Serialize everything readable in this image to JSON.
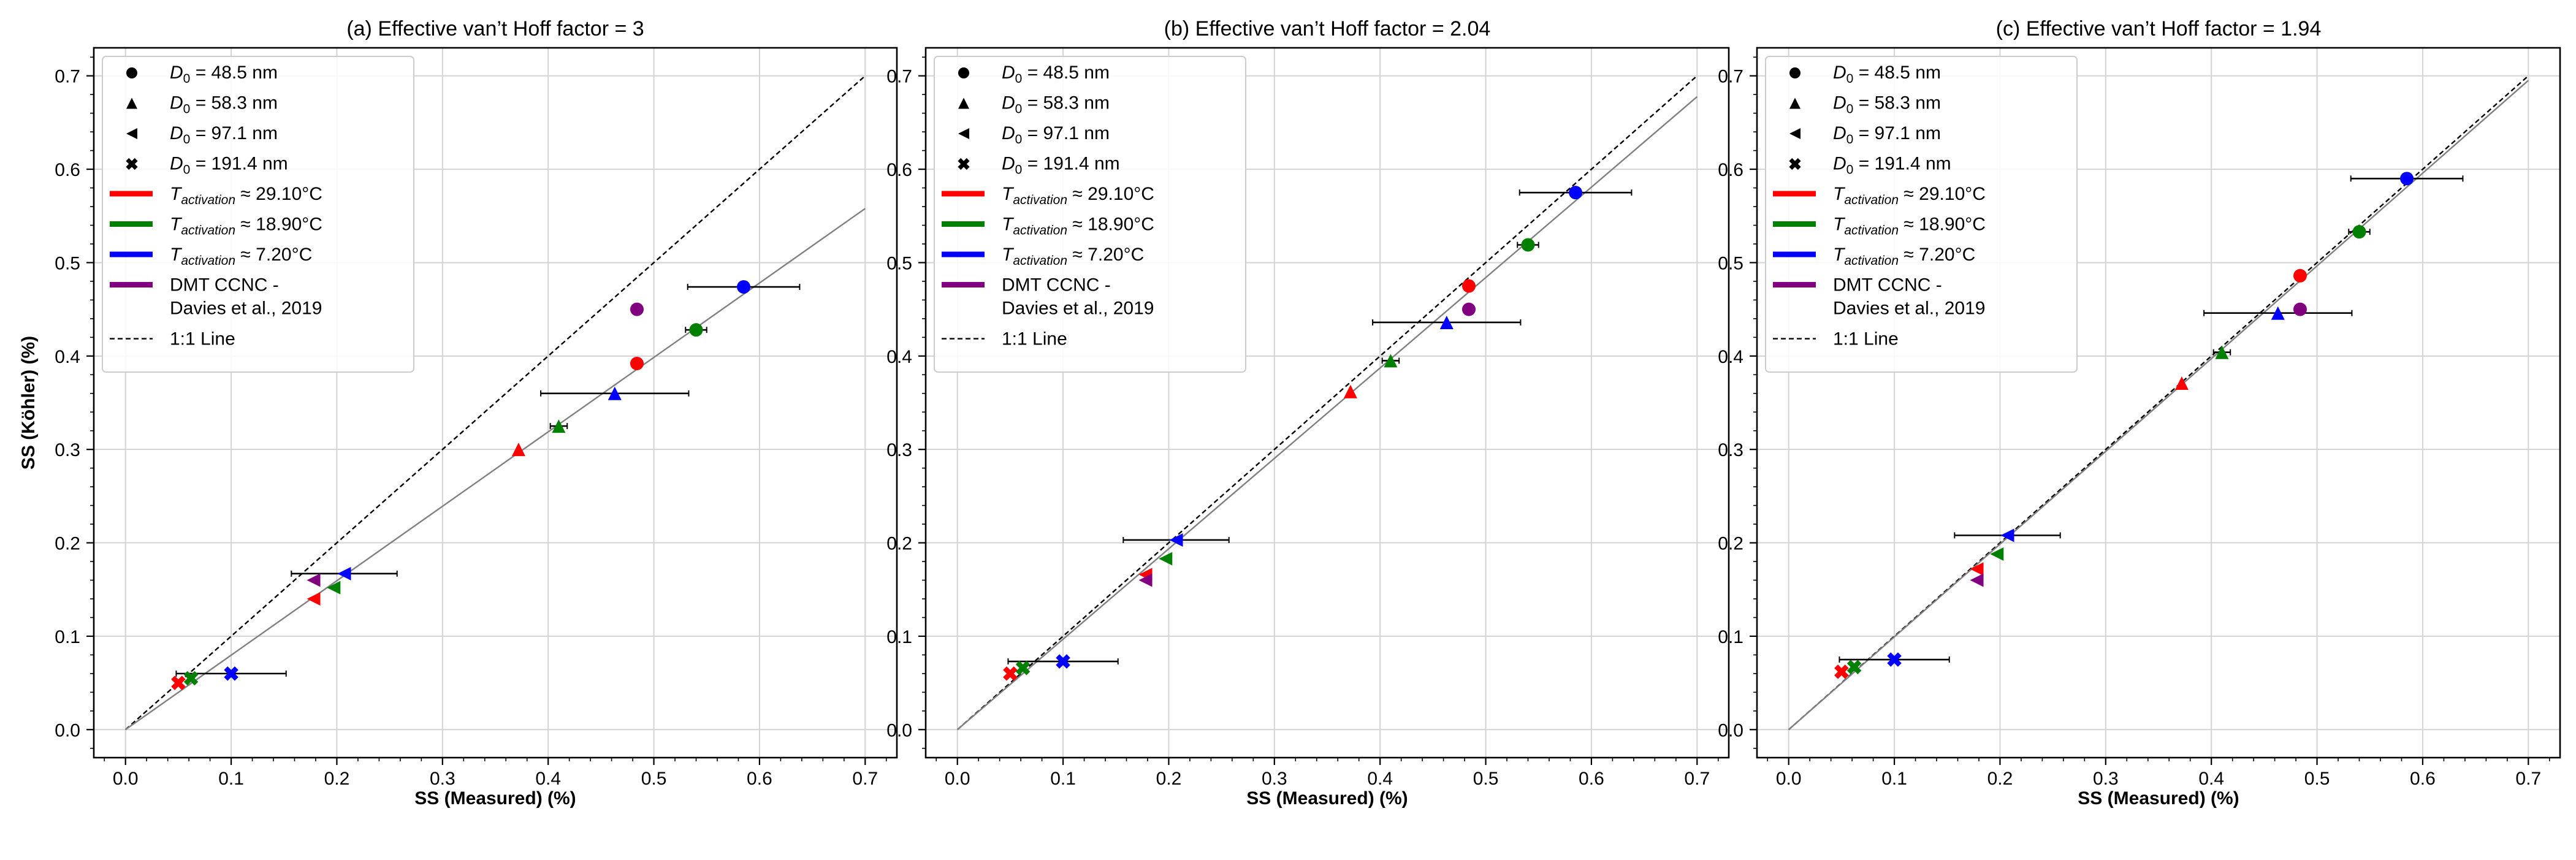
{
  "colors": {
    "red": "#ff0000",
    "green": "#008000",
    "blue": "#0000ff",
    "purple": "#800080",
    "fit_line": "#808080",
    "one_to_one": "#000000",
    "grid": "#d3d3d3",
    "error_bar": "#000000"
  },
  "legend": {
    "d0_prefix": "D",
    "d0_sub": "0",
    "d0_entries": [
      {
        "marker": "circle",
        "value": " = 48.5 nm"
      },
      {
        "marker": "triangle-up",
        "value": " = 58.3 nm"
      },
      {
        "marker": "triangle-left",
        "value": " = 97.1 nm"
      },
      {
        "marker": "x-thick",
        "value": " = 191.4 nm"
      }
    ],
    "t_prefix": "T",
    "t_sub": "activation",
    "t_entries": [
      {
        "color_key": "red",
        "value": " ≈ 29.10°C"
      },
      {
        "color_key": "green",
        "value": " ≈ 18.90°C"
      },
      {
        "color_key": "blue",
        "value": " ≈ 7.20°C"
      }
    ],
    "dmt_line1": "DMT CCNC -",
    "dmt_line2": "Davies et al., 2019",
    "one_to_one": "1:1 Line"
  },
  "chart_data": [
    {
      "type": "scatter",
      "title": "(a) Effective van’t Hoff factor = 3",
      "xlabel": "SS (Measured) (%)",
      "ylabel": "SS (Köhler) (%)",
      "xlim": [
        -0.03,
        0.73
      ],
      "ylim": [
        -0.03,
        0.73
      ],
      "x_ticks": [
        "0.0",
        "0.1",
        "0.2",
        "0.3",
        "0.4",
        "0.5",
        "0.6",
        "0.7"
      ],
      "y_ticks": [
        "0.0",
        "0.1",
        "0.2",
        "0.3",
        "0.4",
        "0.5",
        "0.6",
        "0.7"
      ],
      "grid": true,
      "legend_position": "upper-left",
      "fit_line": {
        "slope": 0.797,
        "intercept": 0.0
      },
      "points": [
        {
          "series": "29.10°C",
          "color_key": "red",
          "d0": "48.5 nm",
          "marker": "circle",
          "x": 0.484,
          "y": 0.392
        },
        {
          "series": "29.10°C",
          "color_key": "red",
          "d0": "58.3 nm",
          "marker": "triangle-up",
          "x": 0.372,
          "y": 0.3
        },
        {
          "series": "29.10°C",
          "color_key": "red",
          "d0": "97.1 nm",
          "marker": "triangle-left",
          "x": 0.178,
          "y": 0.14
        },
        {
          "series": "29.10°C",
          "color_key": "red",
          "d0": "191.4 nm",
          "marker": "x-thick",
          "x": 0.05,
          "y": 0.05
        },
        {
          "series": "18.90°C",
          "color_key": "green",
          "d0": "48.5 nm",
          "marker": "circle",
          "x": 0.54,
          "y": 0.428,
          "xerr": 0.01
        },
        {
          "series": "18.90°C",
          "color_key": "green",
          "d0": "58.3 nm",
          "marker": "triangle-up",
          "x": 0.41,
          "y": 0.325,
          "xerr": 0.008
        },
        {
          "series": "18.90°C",
          "color_key": "green",
          "d0": "97.1 nm",
          "marker": "triangle-left",
          "x": 0.197,
          "y": 0.152
        },
        {
          "series": "18.90°C",
          "color_key": "green",
          "d0": "191.4 nm",
          "marker": "x-thick",
          "x": 0.062,
          "y": 0.055
        },
        {
          "series": "7.20°C",
          "color_key": "blue",
          "d0": "48.5 nm",
          "marker": "circle",
          "x": 0.585,
          "y": 0.474,
          "xerr": 0.053
        },
        {
          "series": "7.20°C",
          "color_key": "blue",
          "d0": "58.3 nm",
          "marker": "triangle-up",
          "x": 0.463,
          "y": 0.36,
          "xerr": 0.07
        },
        {
          "series": "7.20°C",
          "color_key": "blue",
          "d0": "97.1 nm",
          "marker": "triangle-left",
          "x": 0.207,
          "y": 0.167,
          "xerr": 0.05
        },
        {
          "series": "7.20°C",
          "color_key": "blue",
          "d0": "191.4 nm",
          "marker": "x-thick",
          "x": 0.1,
          "y": 0.06,
          "xerr": 0.052
        },
        {
          "series": "DMT CCNC - Davies et al., 2019",
          "color_key": "purple",
          "d0": "48.5 nm",
          "marker": "circle",
          "x": 0.484,
          "y": 0.45
        },
        {
          "series": "DMT CCNC - Davies et al., 2019",
          "color_key": "purple",
          "d0": "97.1 nm",
          "marker": "triangle-left",
          "x": 0.178,
          "y": 0.16
        }
      ]
    },
    {
      "type": "scatter",
      "title": "(b) Effective van’t Hoff factor = 2.04",
      "xlabel": "SS (Measured) (%)",
      "ylabel": "",
      "xlim": [
        -0.03,
        0.73
      ],
      "ylim": [
        -0.03,
        0.73
      ],
      "x_ticks": [
        "0.0",
        "0.1",
        "0.2",
        "0.3",
        "0.4",
        "0.5",
        "0.6",
        "0.7"
      ],
      "y_ticks": [
        "0.0",
        "0.1",
        "0.2",
        "0.3",
        "0.4",
        "0.5",
        "0.6",
        "0.7"
      ],
      "grid": true,
      "legend_position": "upper-left",
      "fit_line": {
        "slope": 0.968,
        "intercept": 0.0
      },
      "points": [
        {
          "series": "29.10°C",
          "color_key": "red",
          "d0": "48.5 nm",
          "marker": "circle",
          "x": 0.484,
          "y": 0.475
        },
        {
          "series": "29.10°C",
          "color_key": "red",
          "d0": "58.3 nm",
          "marker": "triangle-up",
          "x": 0.372,
          "y": 0.362
        },
        {
          "series": "29.10°C",
          "color_key": "red",
          "d0": "97.1 nm",
          "marker": "triangle-left",
          "x": 0.178,
          "y": 0.166
        },
        {
          "series": "29.10°C",
          "color_key": "red",
          "d0": "191.4 nm",
          "marker": "x-thick",
          "x": 0.05,
          "y": 0.06
        },
        {
          "series": "18.90°C",
          "color_key": "green",
          "d0": "48.5 nm",
          "marker": "circle",
          "x": 0.54,
          "y": 0.519,
          "xerr": 0.01
        },
        {
          "series": "18.90°C",
          "color_key": "green",
          "d0": "58.3 nm",
          "marker": "triangle-up",
          "x": 0.41,
          "y": 0.395,
          "xerr": 0.008
        },
        {
          "series": "18.90°C",
          "color_key": "green",
          "d0": "97.1 nm",
          "marker": "triangle-left",
          "x": 0.197,
          "y": 0.183
        },
        {
          "series": "18.90°C",
          "color_key": "green",
          "d0": "191.4 nm",
          "marker": "x-thick",
          "x": 0.062,
          "y": 0.066
        },
        {
          "series": "7.20°C",
          "color_key": "blue",
          "d0": "48.5 nm",
          "marker": "circle",
          "x": 0.585,
          "y": 0.575,
          "xerr": 0.053
        },
        {
          "series": "7.20°C",
          "color_key": "blue",
          "d0": "58.3 nm",
          "marker": "triangle-up",
          "x": 0.463,
          "y": 0.436,
          "xerr": 0.07
        },
        {
          "series": "7.20°C",
          "color_key": "blue",
          "d0": "97.1 nm",
          "marker": "triangle-left",
          "x": 0.207,
          "y": 0.203,
          "xerr": 0.05
        },
        {
          "series": "7.20°C",
          "color_key": "blue",
          "d0": "191.4 nm",
          "marker": "x-thick",
          "x": 0.1,
          "y": 0.073,
          "xerr": 0.052
        },
        {
          "series": "DMT CCNC - Davies et al., 2019",
          "color_key": "purple",
          "d0": "48.5 nm",
          "marker": "circle",
          "x": 0.484,
          "y": 0.45
        },
        {
          "series": "DMT CCNC - Davies et al., 2019",
          "color_key": "purple",
          "d0": "97.1 nm",
          "marker": "triangle-left",
          "x": 0.178,
          "y": 0.16
        }
      ]
    },
    {
      "type": "scatter",
      "title": "(c) Effective van’t Hoff factor = 1.94",
      "xlabel": "SS (Measured) (%)",
      "ylabel": "",
      "xlim": [
        -0.03,
        0.73
      ],
      "ylim": [
        -0.03,
        0.73
      ],
      "x_ticks": [
        "0.0",
        "0.1",
        "0.2",
        "0.3",
        "0.4",
        "0.5",
        "0.6",
        "0.7"
      ],
      "y_ticks": [
        "0.0",
        "0.1",
        "0.2",
        "0.3",
        "0.4",
        "0.5",
        "0.6",
        "0.7"
      ],
      "grid": true,
      "legend_position": "upper-left",
      "fit_line": {
        "slope": 0.993,
        "intercept": 0.0
      },
      "points": [
        {
          "series": "29.10°C",
          "color_key": "red",
          "d0": "48.5 nm",
          "marker": "circle",
          "x": 0.484,
          "y": 0.486
        },
        {
          "series": "29.10°C",
          "color_key": "red",
          "d0": "58.3 nm",
          "marker": "triangle-up",
          "x": 0.372,
          "y": 0.371
        },
        {
          "series": "29.10°C",
          "color_key": "red",
          "d0": "97.1 nm",
          "marker": "triangle-left",
          "x": 0.178,
          "y": 0.172
        },
        {
          "series": "29.10°C",
          "color_key": "red",
          "d0": "191.4 nm",
          "marker": "x-thick",
          "x": 0.05,
          "y": 0.062
        },
        {
          "series": "18.90°C",
          "color_key": "green",
          "d0": "48.5 nm",
          "marker": "circle",
          "x": 0.54,
          "y": 0.533,
          "xerr": 0.01
        },
        {
          "series": "18.90°C",
          "color_key": "green",
          "d0": "58.3 nm",
          "marker": "triangle-up",
          "x": 0.41,
          "y": 0.404,
          "xerr": 0.008
        },
        {
          "series": "18.90°C",
          "color_key": "green",
          "d0": "97.1 nm",
          "marker": "triangle-left",
          "x": 0.197,
          "y": 0.188
        },
        {
          "series": "18.90°C",
          "color_key": "green",
          "d0": "191.4 nm",
          "marker": "x-thick",
          "x": 0.062,
          "y": 0.067
        },
        {
          "series": "7.20°C",
          "color_key": "blue",
          "d0": "48.5 nm",
          "marker": "circle",
          "x": 0.585,
          "y": 0.59,
          "xerr": 0.053
        },
        {
          "series": "7.20°C",
          "color_key": "blue",
          "d0": "58.3 nm",
          "marker": "triangle-up",
          "x": 0.463,
          "y": 0.446,
          "xerr": 0.07
        },
        {
          "series": "7.20°C",
          "color_key": "blue",
          "d0": "97.1 nm",
          "marker": "triangle-left",
          "x": 0.207,
          "y": 0.208,
          "xerr": 0.05
        },
        {
          "series": "7.20°C",
          "color_key": "blue",
          "d0": "191.4 nm",
          "marker": "x-thick",
          "x": 0.1,
          "y": 0.075,
          "xerr": 0.052
        },
        {
          "series": "DMT CCNC - Davies et al., 2019",
          "color_key": "purple",
          "d0": "48.5 nm",
          "marker": "circle",
          "x": 0.484,
          "y": 0.45
        },
        {
          "series": "DMT CCNC - Davies et al., 2019",
          "color_key": "purple",
          "d0": "97.1 nm",
          "marker": "triangle-left",
          "x": 0.178,
          "y": 0.16
        }
      ]
    }
  ]
}
